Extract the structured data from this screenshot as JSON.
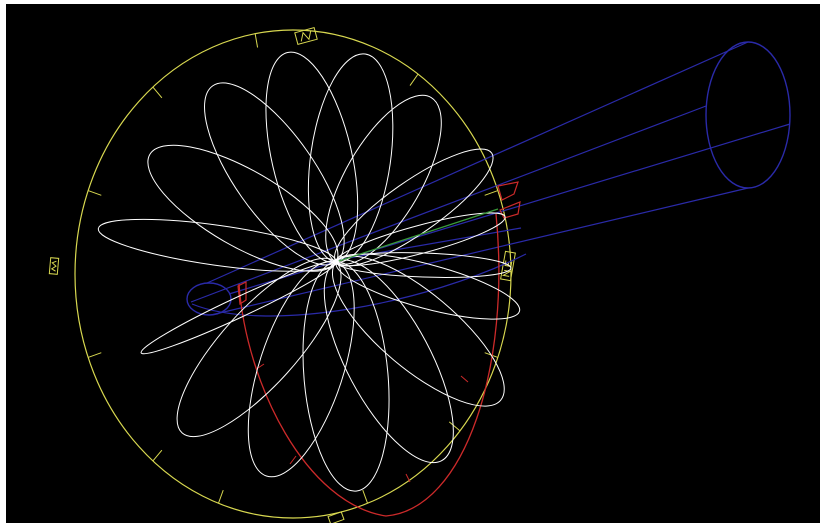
{
  "viewer": {
    "background": "#000000",
    "frame_color": "#ffffff"
  },
  "colors": {
    "compass": "#d8d850",
    "petals": "#ffffff",
    "cone": "#2a2aa8",
    "red_arc": "#cc2a2a",
    "green_ray": "#3a9a3a"
  },
  "compass": {
    "labels": [
      {
        "text": "N",
        "pos": "top"
      },
      {
        "text": "NE",
        "pos": "right"
      },
      {
        "text": "W",
        "pos": "left"
      },
      {
        "text": "S",
        "pos": "bottom"
      }
    ]
  },
  "petals": {
    "count": 14
  },
  "icons": [
    "compass-ring-icon",
    "rose-pattern-icon",
    "cone-icon"
  ]
}
